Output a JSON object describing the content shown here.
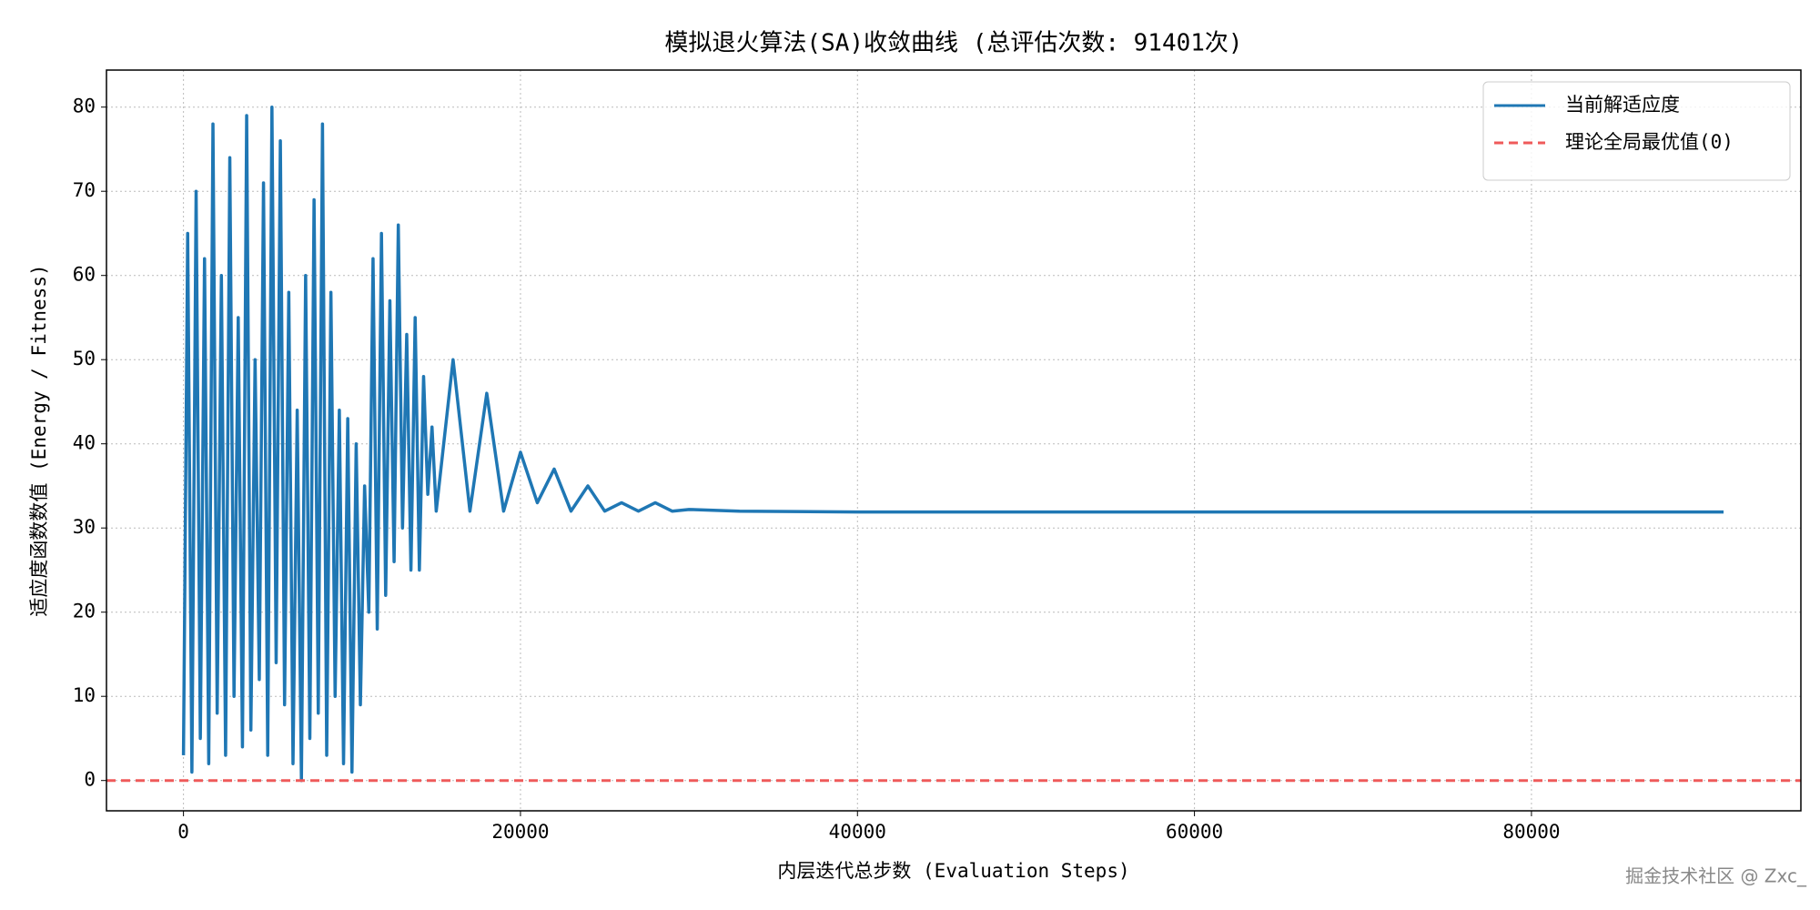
{
  "chart_data": {
    "type": "line",
    "title": "模拟退火算法(SA)收敛曲线 (总评估次数: 91401次)",
    "x_label": "内层迭代总步数 (Evaluation Steps)",
    "y_label": "适应度函数数值 (Energy / Fitness)",
    "watermark": "掘金技术社区 @ Zxc_",
    "x": [
      0,
      250,
      500,
      750,
      1000,
      1250,
      1500,
      1750,
      2000,
      2250,
      2500,
      2750,
      3000,
      3250,
      3500,
      3750,
      4000,
      4250,
      4500,
      4750,
      5000,
      5250,
      5500,
      5750,
      6000,
      6250,
      6500,
      6750,
      7000,
      7250,
      7500,
      7750,
      8000,
      8250,
      8500,
      8750,
      9000,
      9250,
      9500,
      9750,
      10000,
      10250,
      10500,
      10750,
      11000,
      11250,
      11500,
      11750,
      12000,
      12250,
      12500,
      12750,
      13000,
      13250,
      13500,
      13750,
      14000,
      14250,
      14500,
      14750,
      15000,
      16000,
      17000,
      18000,
      19000,
      20000,
      21000,
      22000,
      23000,
      24000,
      25000,
      26000,
      27000,
      28000,
      29000,
      30000,
      33000,
      40000,
      60000,
      80000,
      91400
    ],
    "series": [
      {
        "name": "当前解适应度",
        "color": "#1f77b4",
        "values": [
          3,
          65,
          1,
          70,
          5,
          62,
          2,
          78,
          8,
          60,
          3,
          74,
          10,
          55,
          4,
          79,
          6,
          50,
          12,
          71,
          3,
          80,
          14,
          76,
          9,
          58,
          2,
          44,
          0,
          60,
          5,
          69,
          8,
          78,
          3,
          58,
          10,
          44,
          2,
          43,
          1,
          40,
          9,
          35,
          20,
          62,
          18,
          65,
          22,
          57,
          26,
          66,
          30,
          53,
          25,
          55,
          25,
          48,
          34,
          42,
          32,
          50,
          32,
          46,
          32,
          39,
          33,
          37,
          32,
          35,
          32,
          33,
          32,
          33,
          32,
          32.2,
          32,
          31.9,
          31.9,
          31.9,
          31.9
        ]
      }
    ],
    "reference_line": {
      "name": "理论全局最优值(0)",
      "color": "#ef5a5a",
      "value": 0,
      "style": "dashed"
    },
    "xlim": [
      -4570,
      95990
    ],
    "ylim": [
      -3.6,
      84.4
    ],
    "xticks": [
      0,
      20000,
      40000,
      60000,
      80000
    ],
    "yticks": [
      0,
      10,
      20,
      30,
      40,
      50,
      60,
      70,
      80
    ],
    "grid": true,
    "legend": "upper right"
  }
}
